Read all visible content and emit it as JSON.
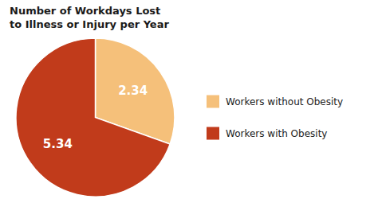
{
  "chart_data": {
    "type": "pie",
    "title": "Number of Workdays Lost\nto Illness or Injury per Year",
    "categories": [
      "Workers without Obesity",
      "Workers with Obesity"
    ],
    "values": [
      2.34,
      5.34
    ],
    "colors": [
      "#F5C07A",
      "#C13B1B"
    ],
    "data_labels": true,
    "legend": "right"
  }
}
